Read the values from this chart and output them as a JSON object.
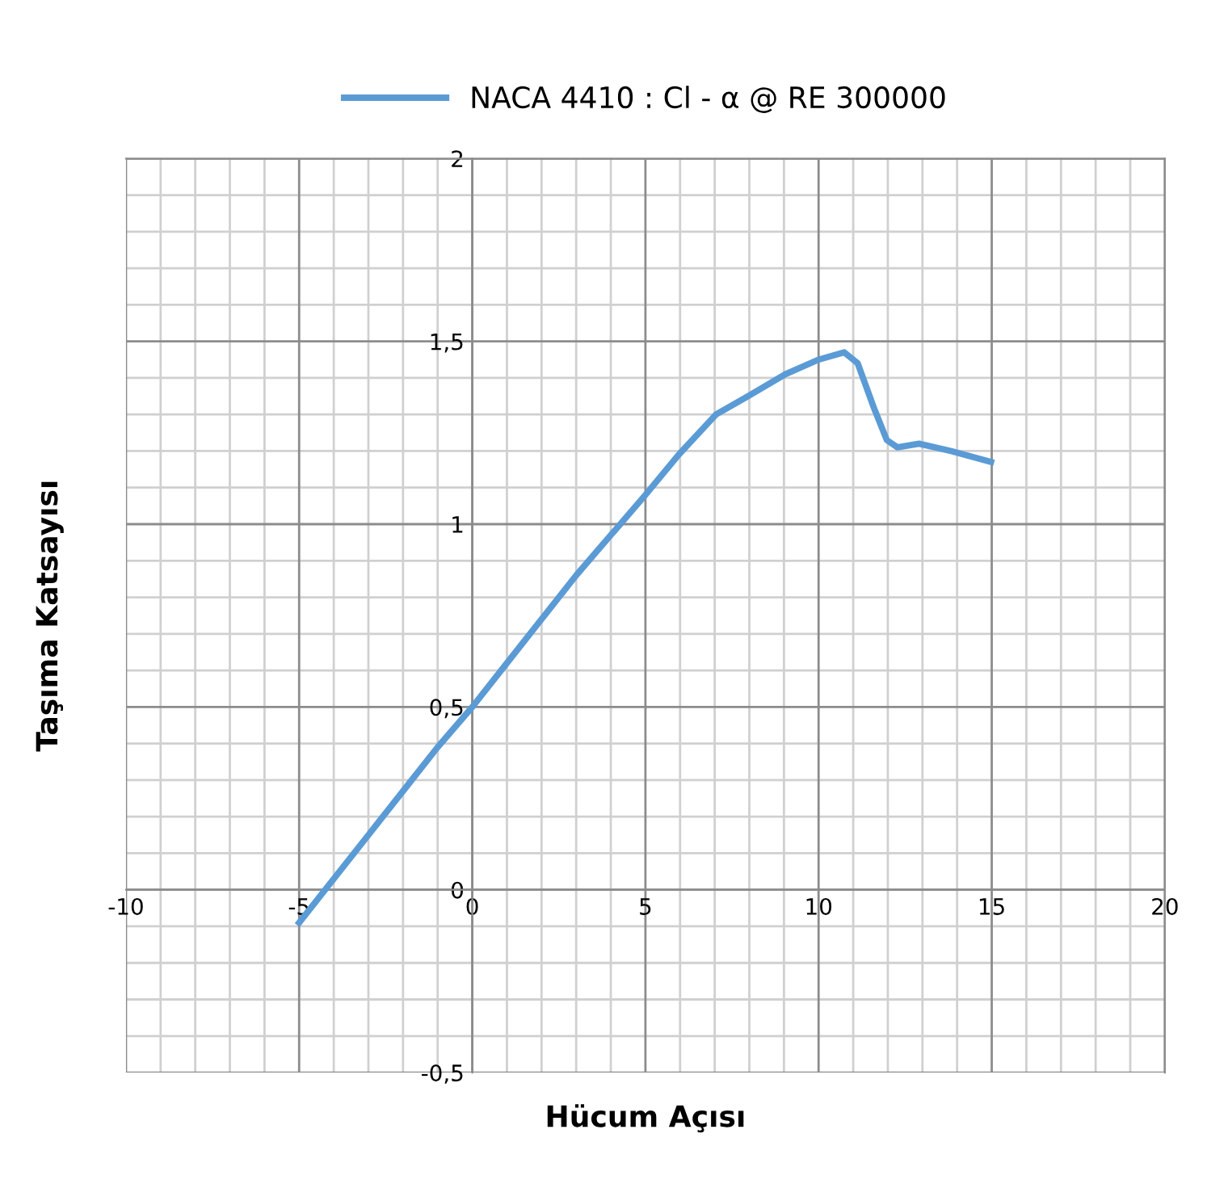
{
  "chart_data": {
    "type": "line",
    "xlabel": "Hücum Açısı",
    "ylabel": "Taşıma Katsayısı",
    "series": [
      {
        "name": "NACA 4410 : Cl - α @ RE 300000",
        "color": "#5b9bd5",
        "x": [
          -5,
          -4,
          -3,
          -2,
          -1,
          0,
          1,
          2,
          3,
          4,
          5,
          5.96,
          7.04,
          7.96,
          9.04,
          10,
          10.74,
          11.13,
          11.59,
          11.97,
          12.28,
          12.9,
          13.83,
          14.98
        ],
        "values": [
          -0.09,
          0.03,
          0.15,
          0.27,
          0.39,
          0.5,
          0.62,
          0.74,
          0.86,
          0.97,
          1.08,
          1.19,
          1.3,
          1.35,
          1.41,
          1.45,
          1.47,
          1.44,
          1.32,
          1.23,
          1.21,
          1.22,
          1.2,
          1.17
        ]
      }
    ],
    "xlim": [
      -10,
      20
    ],
    "xticks": [
      -10,
      -5,
      0,
      5,
      10,
      15,
      20
    ],
    "ylim": [
      -0.5,
      2
    ],
    "yticks": [
      {
        "value": -0.5,
        "label": "-0,5"
      },
      {
        "value": 0,
        "label": "0"
      },
      {
        "value": 0.5,
        "label": "0,5"
      },
      {
        "value": 1,
        "label": "1"
      },
      {
        "value": 1.5,
        "label": "1,5"
      },
      {
        "value": 2,
        "label": "2"
      }
    ],
    "grid": true,
    "legend": "top",
    "marker": "none",
    "line_style": "solid"
  }
}
